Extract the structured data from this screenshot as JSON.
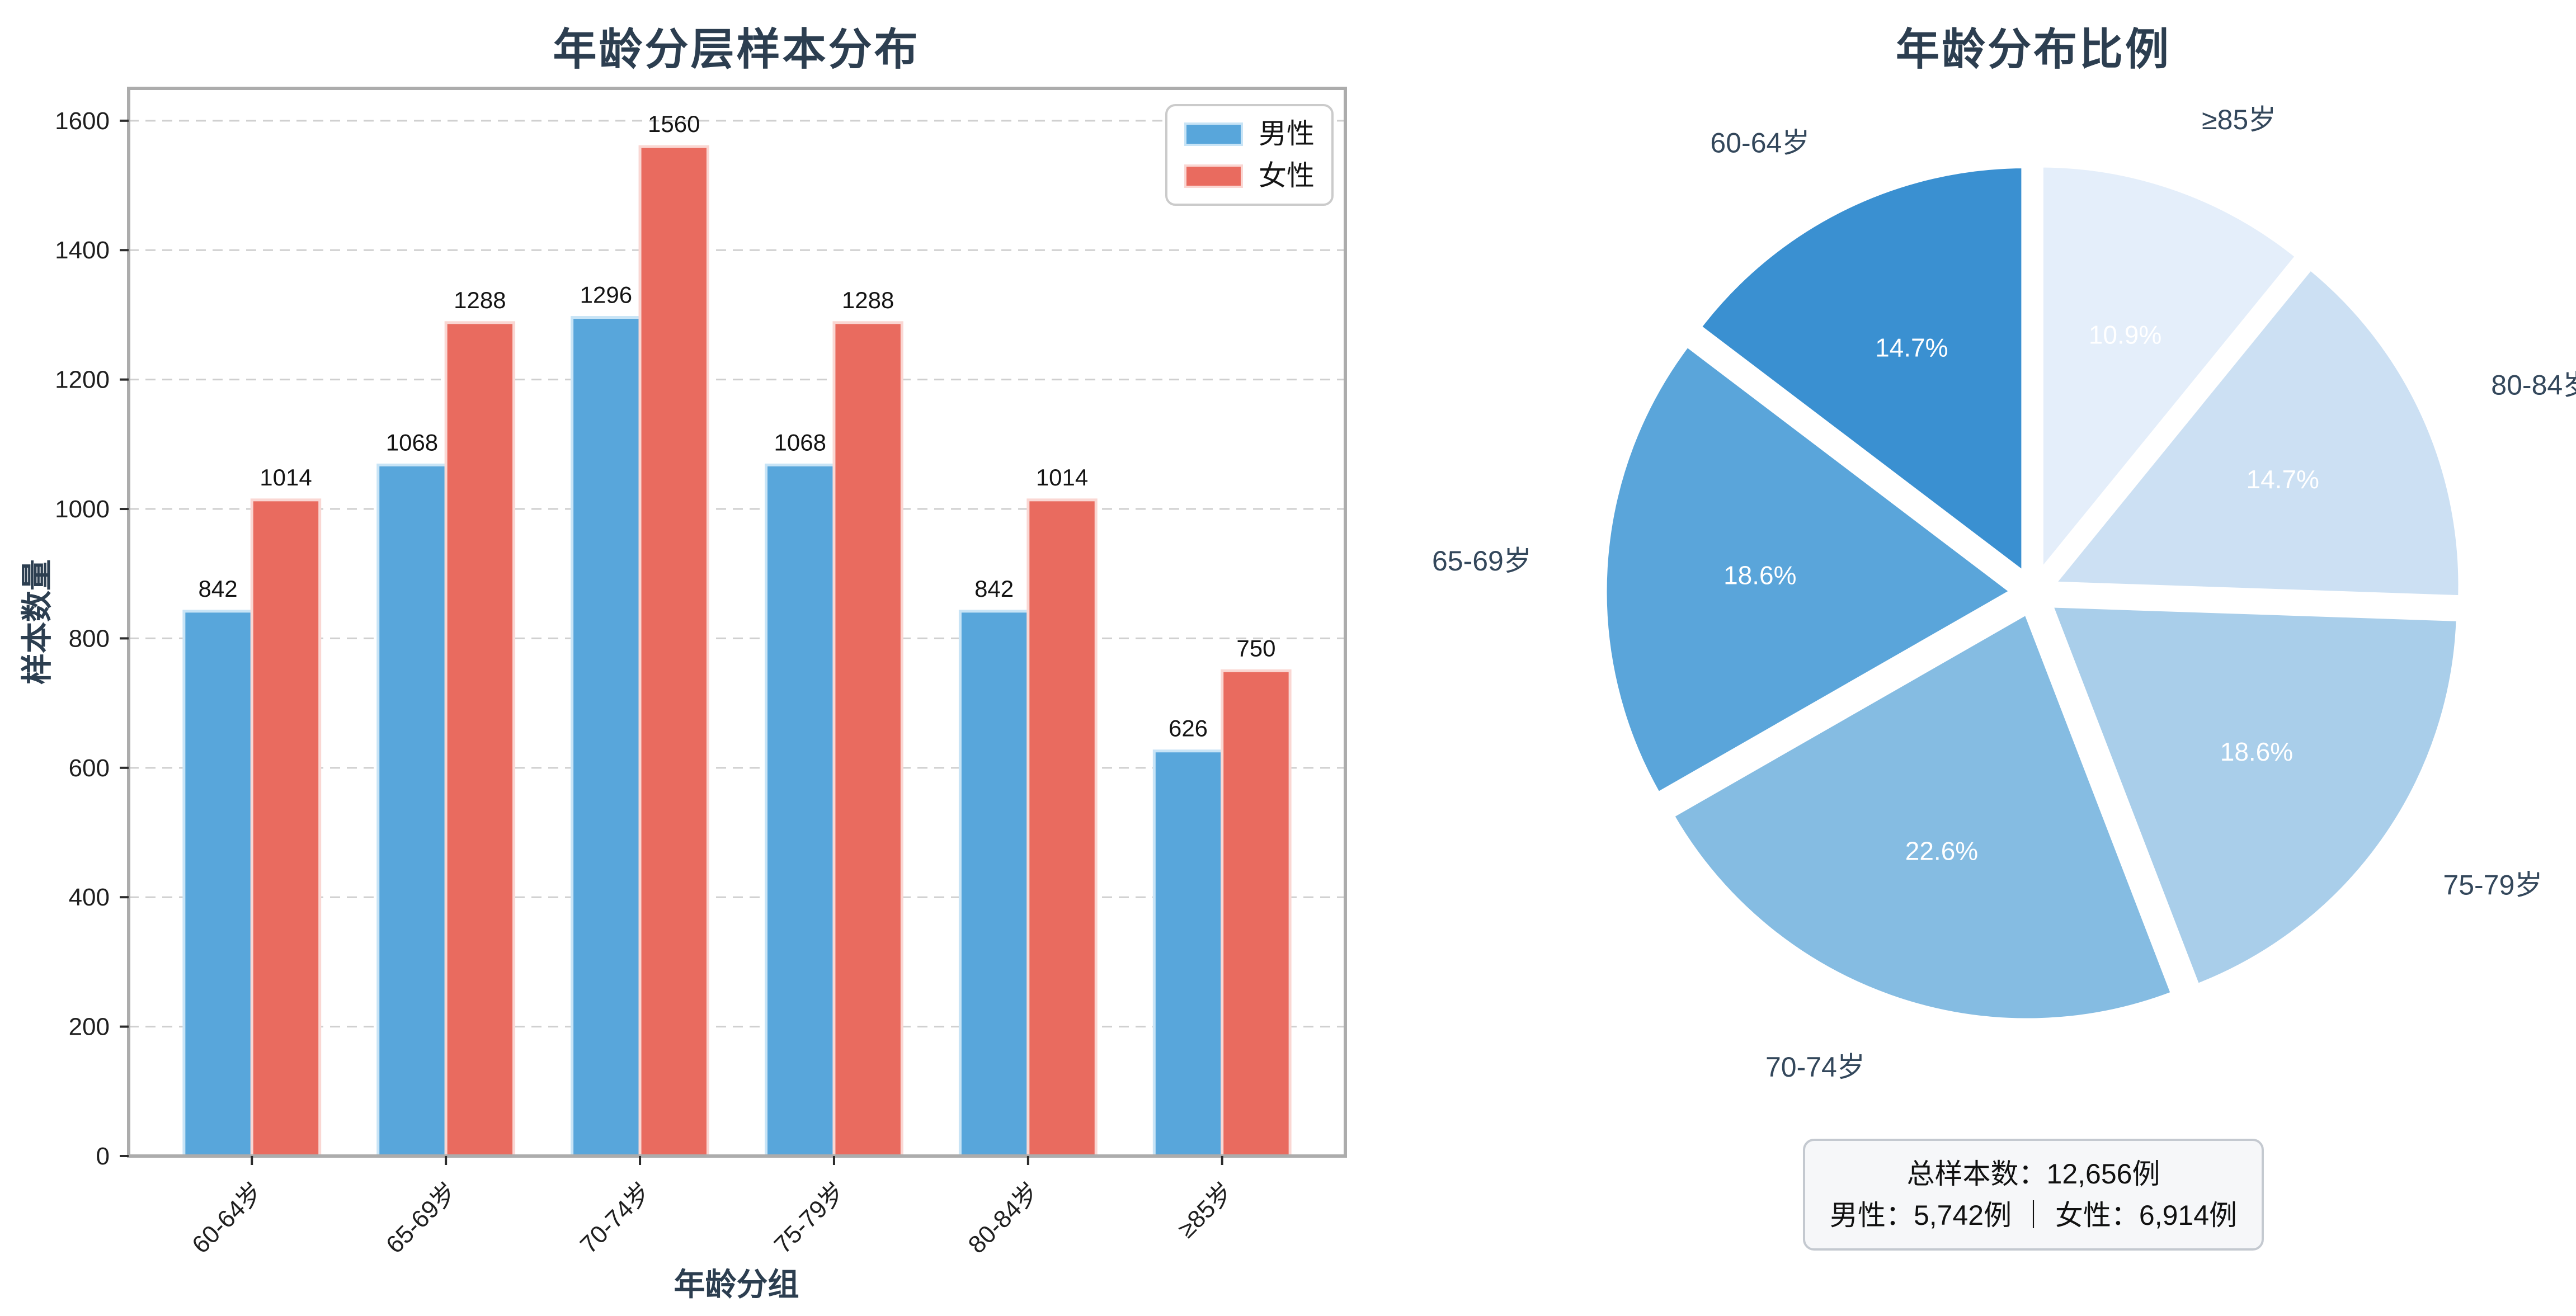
{
  "chart_data": [
    {
      "type": "bar",
      "title": "年龄分层样本分布",
      "xlabel": "年龄分组",
      "ylabel": "样本数量",
      "categories": [
        "60-64岁",
        "65-69岁",
        "70-74岁",
        "75-79岁",
        "80-84岁",
        "≥85岁"
      ],
      "series": [
        {
          "key": "male",
          "name": "男性",
          "color": "#58a6db",
          "edge_color": "#c8e4f6",
          "values": [
            842,
            1068,
            1296,
            1068,
            842,
            626
          ]
        },
        {
          "key": "female",
          "name": "女性",
          "color": "#e96b5f",
          "edge_color": "#fad7d3",
          "values": [
            1014,
            1288,
            1560,
            1288,
            1014,
            750
          ]
        }
      ],
      "yticks": [
        0,
        200,
        400,
        600,
        800,
        1000,
        1200,
        1400,
        1600
      ],
      "ylim": [
        0,
        1650
      ],
      "grid": "dashed-horizontal",
      "legend_position": "upper-right"
    },
    {
      "type": "pie",
      "title": "年龄分布比例",
      "labels": [
        "60-64岁",
        "65-69岁",
        "70-74岁",
        "75-79岁",
        "80-84岁",
        "≥85岁"
      ],
      "values": [
        1856,
        2356,
        2856,
        2356,
        1856,
        1376
      ],
      "pct_labels": [
        "14.7%",
        "18.6%",
        "22.6%",
        "18.6%",
        "14.7%",
        "10.9%"
      ],
      "colors": [
        "#3a90d1",
        "#5aa5da",
        "#85bce2",
        "#a9ceea",
        "#cce0f3",
        "#e4eefa"
      ],
      "pct_text_color": "#ffffff",
      "start_angle": 90,
      "counterclock": true,
      "annotation": [
        "总样本数：12,656例",
        "男性：5,742例 ｜ 女性：6,914例"
      ]
    }
  ]
}
